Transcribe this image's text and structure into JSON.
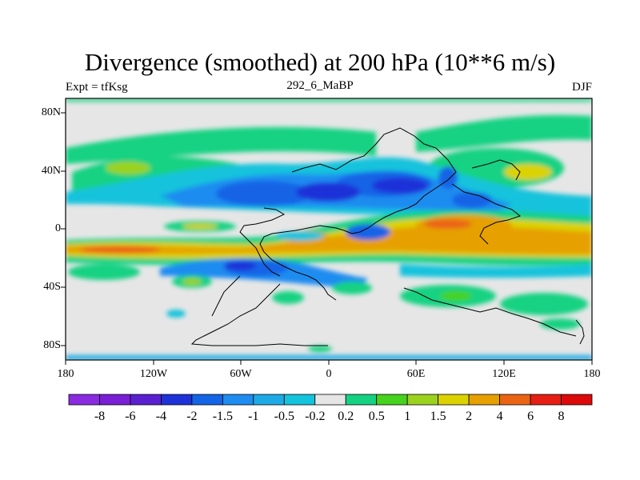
{
  "title": "Divergence (smoothed) at 200 hPa (10**6 m/s)",
  "left_label": "Expt = tfKsg",
  "center_label": "292_6_MaBP",
  "right_label": "DJF",
  "chart_data": {
    "type": "heatmap",
    "variable": "Divergence (smoothed)",
    "level": "200 hPa",
    "units": "10**6 m/s",
    "season": "DJF",
    "lon_range": [
      -180,
      180
    ],
    "lat_range": [
      -90,
      90
    ],
    "x_ticks": [
      {
        "value": -180,
        "label": "180"
      },
      {
        "value": -120,
        "label": "120W"
      },
      {
        "value": -60,
        "label": "60W"
      },
      {
        "value": 0,
        "label": "0"
      },
      {
        "value": 60,
        "label": "60E"
      },
      {
        "value": 120,
        "label": "120E"
      },
      {
        "value": 180,
        "label": "180"
      }
    ],
    "y_ticks": [
      {
        "value": 80,
        "label": "80N"
      },
      {
        "value": 40,
        "label": "40N"
      },
      {
        "value": 0,
        "label": "0"
      },
      {
        "value": -40,
        "label": "40S"
      },
      {
        "value": -80,
        "label": "80S"
      }
    ],
    "colorbar": {
      "labels": [
        "-8",
        "-6",
        "-4",
        "-2",
        "-1.5",
        "-1",
        "-0.5",
        "-0.2",
        "0.2",
        "0.5",
        "1",
        "1.5",
        "2",
        "4",
        "6",
        "8"
      ],
      "colors": [
        "#8a2be2",
        "#7a1fd6",
        "#5a20d0",
        "#1e32d8",
        "#1464e6",
        "#1e8cf0",
        "#1eaae6",
        "#14c3dc",
        "#e6e6e6",
        "#14d282",
        "#46d21e",
        "#9bd21e",
        "#dcd200",
        "#e6a000",
        "#eb6414",
        "#e61e14",
        "#dc0a0a"
      ]
    },
    "features": [
      {
        "name": "equatorial divergence band",
        "lon_range": [
          -180,
          180
        ],
        "lat_range": [
          -25,
          -10
        ],
        "value": 2
      },
      {
        "name": "maritime continent divergence maximum",
        "lon_range": [
          40,
          110
        ],
        "lat_range": [
          -10,
          10
        ],
        "value": 4
      },
      {
        "name": "subtropical convergence band north",
        "lon_range": [
          -180,
          180
        ],
        "lat_range": [
          10,
          45
        ],
        "value": -2
      },
      {
        "name": "southern convergence belt",
        "lon_range": [
          -180,
          0
        ],
        "lat_range": [
          -40,
          -25
        ],
        "value": -1.5
      }
    ]
  }
}
